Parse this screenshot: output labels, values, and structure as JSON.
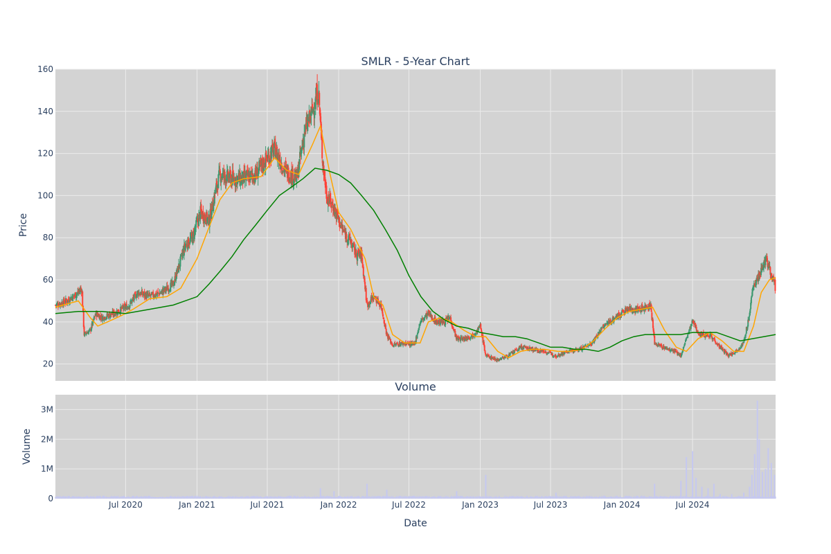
{
  "chart_data": [
    {
      "type": "candlestick",
      "title": "SMLR - 5-Year Chart",
      "ylabel": "Price",
      "ylim": [
        12,
        160
      ],
      "y_ticks": [
        20,
        40,
        60,
        80,
        100,
        120,
        140,
        160
      ],
      "x_ticks": [
        "Jul 2020",
        "Jan 2021",
        "Jul 2021",
        "Jan 2022",
        "Jul 2022",
        "Jan 2023",
        "Jul 2023",
        "Jan 2024",
        "Jul 2024"
      ],
      "xlim": [
        "2020-01-02",
        "2025-01-31"
      ],
      "grid": true,
      "colors": {
        "up": "#3d9970",
        "down": "#ff4136",
        "ma_short": "#ffa500",
        "ma_long": "#008000",
        "plot_bg": "#d3d3d3",
        "grid": "#ebebeb"
      },
      "series": [
        {
          "kind": "candlestick",
          "close": [
            [
              "2020-01-02",
              48
            ],
            [
              "2020-02-01",
              50
            ],
            [
              "2020-03-01",
              54
            ],
            [
              "2020-03-10",
              56
            ],
            [
              "2020-03-16",
              34
            ],
            [
              "2020-04-01",
              36
            ],
            [
              "2020-04-15",
              44
            ],
            [
              "2020-05-01",
              42
            ],
            [
              "2020-06-01",
              44
            ],
            [
              "2020-06-20",
              46
            ],
            [
              "2020-07-10",
              48
            ],
            [
              "2020-08-01",
              54
            ],
            [
              "2020-09-01",
              52
            ],
            [
              "2020-10-01",
              54
            ],
            [
              "2020-11-01",
              58
            ],
            [
              "2020-12-01",
              76
            ],
            [
              "2020-12-20",
              80
            ],
            [
              "2021-01-10",
              92
            ],
            [
              "2021-02-01",
              88
            ],
            [
              "2021-02-20",
              104
            ],
            [
              "2021-03-01",
              110
            ],
            [
              "2021-04-01",
              108
            ],
            [
              "2021-05-01",
              108
            ],
            [
              "2021-06-01",
              110
            ],
            [
              "2021-07-01",
              118
            ],
            [
              "2021-07-20",
              122
            ],
            [
              "2021-08-15",
              112
            ],
            [
              "2021-09-15",
              108
            ],
            [
              "2021-10-05",
              130
            ],
            [
              "2021-10-25",
              140
            ],
            [
              "2021-11-10",
              150
            ],
            [
              "2021-11-20",
              118
            ],
            [
              "2021-12-01",
              100
            ],
            [
              "2021-12-20",
              94
            ],
            [
              "2022-01-10",
              84
            ],
            [
              "2022-02-01",
              78
            ],
            [
              "2022-02-15",
              72
            ],
            [
              "2022-03-01",
              72
            ],
            [
              "2022-03-15",
              48
            ],
            [
              "2022-04-01",
              52
            ],
            [
              "2022-04-20",
              48
            ],
            [
              "2022-05-05",
              34
            ],
            [
              "2022-05-20",
              29
            ],
            [
              "2022-06-20",
              30
            ],
            [
              "2022-07-15",
              29
            ],
            [
              "2022-07-30",
              40
            ],
            [
              "2022-08-20",
              44
            ],
            [
              "2022-09-10",
              40
            ],
            [
              "2022-10-01",
              40
            ],
            [
              "2022-10-15",
              42
            ],
            [
              "2022-11-01",
              32
            ],
            [
              "2022-11-20",
              32
            ],
            [
              "2022-12-15",
              34
            ],
            [
              "2023-01-01",
              38
            ],
            [
              "2023-01-15",
              24
            ],
            [
              "2023-02-15",
              22
            ],
            [
              "2023-03-15",
              24
            ],
            [
              "2023-04-15",
              28
            ],
            [
              "2023-05-15",
              27
            ],
            [
              "2023-06-15",
              26
            ],
            [
              "2023-07-15",
              24
            ],
            [
              "2023-08-15",
              26
            ],
            [
              "2023-09-15",
              27
            ],
            [
              "2023-10-15",
              30
            ],
            [
              "2023-11-15",
              38
            ],
            [
              "2023-12-15",
              42
            ],
            [
              "2024-01-15",
              46
            ],
            [
              "2024-02-15",
              46
            ],
            [
              "2024-03-15",
              48
            ],
            [
              "2024-03-25",
              30
            ],
            [
              "2024-04-15",
              28
            ],
            [
              "2024-05-15",
              26
            ],
            [
              "2024-06-01",
              24
            ],
            [
              "2024-06-15",
              32
            ],
            [
              "2024-07-01",
              40
            ],
            [
              "2024-07-20",
              34
            ],
            [
              "2024-08-15",
              34
            ],
            [
              "2024-09-10",
              28
            ],
            [
              "2024-10-01",
              24
            ],
            [
              "2024-10-20",
              26
            ],
            [
              "2024-11-10",
              30
            ],
            [
              "2024-11-25",
              44
            ],
            [
              "2024-12-05",
              58
            ],
            [
              "2024-12-20",
              62
            ],
            [
              "2025-01-05",
              70
            ],
            [
              "2025-01-15",
              66
            ],
            [
              "2025-01-31",
              56
            ]
          ]
        },
        {
          "kind": "line",
          "values": [
            [
              "2020-01-02",
              47
            ],
            [
              "2020-03-01",
              50
            ],
            [
              "2020-04-01",
              42
            ],
            [
              "2020-04-20",
              38
            ],
            [
              "2020-05-15",
              40
            ],
            [
              "2020-06-20",
              43
            ],
            [
              "2020-07-20",
              46
            ],
            [
              "2020-09-01",
              51
            ],
            [
              "2020-10-15",
              52
            ],
            [
              "2020-11-20",
              56
            ],
            [
              "2021-01-01",
              70
            ],
            [
              "2021-02-01",
              85
            ],
            [
              "2021-03-01",
              98
            ],
            [
              "2021-04-01",
              106
            ],
            [
              "2021-05-01",
              108
            ],
            [
              "2021-06-15",
              109
            ],
            [
              "2021-07-20",
              118
            ],
            [
              "2021-08-20",
              112
            ],
            [
              "2021-09-20",
              110
            ],
            [
              "2021-10-25",
              124
            ],
            [
              "2021-11-15",
              133
            ],
            [
              "2021-12-10",
              110
            ],
            [
              "2022-01-01",
              92
            ],
            [
              "2022-02-01",
              84
            ],
            [
              "2022-03-10",
              70
            ],
            [
              "2022-04-01",
              52
            ],
            [
              "2022-04-25",
              48
            ],
            [
              "2022-05-20",
              34
            ],
            [
              "2022-06-20",
              30
            ],
            [
              "2022-07-30",
              30
            ],
            [
              "2022-08-20",
              40
            ],
            [
              "2022-09-20",
              42
            ],
            [
              "2022-10-20",
              40
            ],
            [
              "2022-11-20",
              36
            ],
            [
              "2022-12-20",
              33
            ],
            [
              "2023-01-15",
              33
            ],
            [
              "2023-02-15",
              26
            ],
            [
              "2023-03-15",
              23
            ],
            [
              "2023-04-15",
              26
            ],
            [
              "2023-05-15",
              27
            ],
            [
              "2023-06-15",
              27
            ],
            [
              "2023-07-20",
              26
            ],
            [
              "2023-08-20",
              26
            ],
            [
              "2023-09-20",
              27
            ],
            [
              "2023-10-20",
              31
            ],
            [
              "2023-11-20",
              37
            ],
            [
              "2023-12-20",
              42
            ],
            [
              "2024-01-20",
              45
            ],
            [
              "2024-02-20",
              46
            ],
            [
              "2024-03-20",
              47
            ],
            [
              "2024-04-20",
              36
            ],
            [
              "2024-05-20",
              28
            ],
            [
              "2024-06-15",
              26
            ],
            [
              "2024-07-15",
              32
            ],
            [
              "2024-08-15",
              35
            ],
            [
              "2024-09-15",
              31
            ],
            [
              "2024-10-15",
              26
            ],
            [
              "2024-11-10",
              26
            ],
            [
              "2024-12-05",
              38
            ],
            [
              "2024-12-25",
              54
            ],
            [
              "2025-01-15",
              60
            ],
            [
              "2025-01-31",
              61
            ]
          ]
        },
        {
          "kind": "line",
          "values": [
            [
              "2020-01-02",
              44
            ],
            [
              "2020-03-01",
              45
            ],
            [
              "2020-05-01",
              45
            ],
            [
              "2020-07-01",
              44
            ],
            [
              "2020-09-01",
              46
            ],
            [
              "2020-11-01",
              48
            ],
            [
              "2021-01-01",
              52
            ],
            [
              "2021-02-01",
              58
            ],
            [
              "2021-03-01",
              64
            ],
            [
              "2021-04-01",
              71
            ],
            [
              "2021-05-01",
              79
            ],
            [
              "2021-06-01",
              86
            ],
            [
              "2021-07-01",
              93
            ],
            [
              "2021-08-01",
              100
            ],
            [
              "2021-09-01",
              104
            ],
            [
              "2021-10-01",
              108
            ],
            [
              "2021-11-01",
              113
            ],
            [
              "2021-12-01",
              112
            ],
            [
              "2022-01-01",
              110
            ],
            [
              "2022-02-01",
              106
            ],
            [
              "2022-03-01",
              100
            ],
            [
              "2022-04-01",
              93
            ],
            [
              "2022-05-01",
              84
            ],
            [
              "2022-06-01",
              74
            ],
            [
              "2022-07-01",
              62
            ],
            [
              "2022-08-01",
              52
            ],
            [
              "2022-09-01",
              45
            ],
            [
              "2022-10-01",
              41
            ],
            [
              "2022-11-01",
              38
            ],
            [
              "2022-12-01",
              37
            ],
            [
              "2023-01-01",
              35
            ],
            [
              "2023-02-01",
              34
            ],
            [
              "2023-03-01",
              33
            ],
            [
              "2023-04-01",
              33
            ],
            [
              "2023-05-01",
              32
            ],
            [
              "2023-06-01",
              30
            ],
            [
              "2023-07-01",
              28
            ],
            [
              "2023-08-01",
              28
            ],
            [
              "2023-09-01",
              27
            ],
            [
              "2023-10-01",
              27
            ],
            [
              "2023-11-01",
              26
            ],
            [
              "2023-12-01",
              28
            ],
            [
              "2024-01-01",
              31
            ],
            [
              "2024-02-01",
              33
            ],
            [
              "2024-03-01",
              34
            ],
            [
              "2024-04-01",
              34
            ],
            [
              "2024-05-01",
              34
            ],
            [
              "2024-06-01",
              34
            ],
            [
              "2024-07-01",
              35
            ],
            [
              "2024-08-01",
              35
            ],
            [
              "2024-09-01",
              35
            ],
            [
              "2024-10-01",
              33
            ],
            [
              "2024-11-01",
              31
            ],
            [
              "2024-12-01",
              32
            ],
            [
              "2025-01-01",
              33
            ],
            [
              "2025-01-31",
              34
            ]
          ]
        }
      ]
    },
    {
      "type": "bar",
      "title": "Volume",
      "xlabel": "Date",
      "ylabel": "Volume",
      "ylim": [
        0,
        3500000
      ],
      "y_ticks": [
        0,
        1000000,
        2000000,
        3000000
      ],
      "y_tick_labels": [
        "0",
        "1M",
        "2M",
        "3M"
      ],
      "x_ticks": [
        "Jul 2020",
        "Jan 2021",
        "Jul 2021",
        "Jan 2022",
        "Jul 2022",
        "Jan 2023",
        "Jul 2023",
        "Jan 2024",
        "Jul 2024"
      ],
      "colors": {
        "bar": "#c5c8f0"
      },
      "series": [
        {
          "values": [
            [
              "2020-03-16",
              60000
            ],
            [
              "2021-11-15",
              350000
            ],
            [
              "2021-12-20",
              250000
            ],
            [
              "2022-03-15",
              500000
            ],
            [
              "2022-05-05",
              300000
            ],
            [
              "2022-11-01",
              250000
            ],
            [
              "2023-01-15",
              800000
            ],
            [
              "2023-07-15",
              200000
            ],
            [
              "2024-03-25",
              500000
            ],
            [
              "2024-06-01",
              600000
            ],
            [
              "2024-06-15",
              1400000
            ],
            [
              "2024-07-01",
              1600000
            ],
            [
              "2024-07-10",
              700000
            ],
            [
              "2024-07-25",
              400000
            ],
            [
              "2024-08-10",
              350000
            ],
            [
              "2024-08-25",
              500000
            ],
            [
              "2024-09-10",
              150000
            ],
            [
              "2024-10-10",
              150000
            ],
            [
              "2024-11-10",
              200000
            ],
            [
              "2024-11-25",
              400000
            ],
            [
              "2024-12-01",
              800000
            ],
            [
              "2024-12-08",
              1500000
            ],
            [
              "2024-12-15",
              3300000
            ],
            [
              "2024-12-20",
              2000000
            ],
            [
              "2024-12-28",
              900000
            ],
            [
              "2025-01-05",
              1000000
            ],
            [
              "2025-01-12",
              1700000
            ],
            [
              "2025-01-20",
              1200000
            ],
            [
              "2025-01-28",
              800000
            ]
          ]
        }
      ]
    }
  ]
}
